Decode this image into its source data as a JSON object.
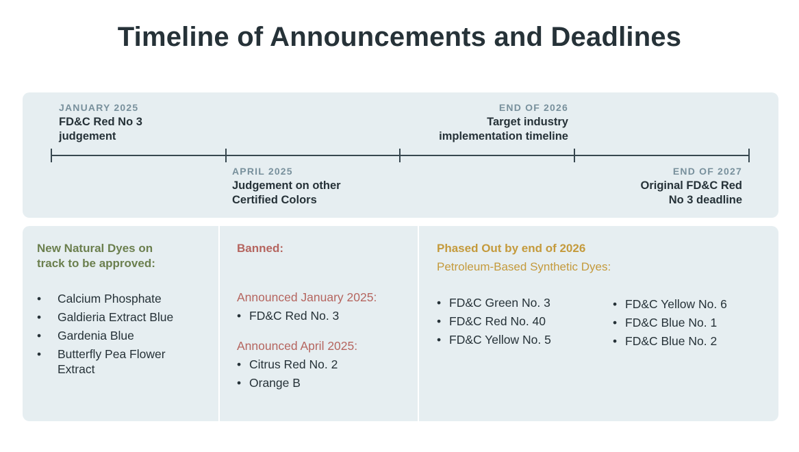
{
  "title": "Timeline of Announcements and Deadlines",
  "timeline": {
    "events": [
      {
        "date": "JANUARY 2025",
        "line1": "FD&C Red No 3",
        "line2": "judgement"
      },
      {
        "date": "APRIL 2025",
        "line1": "Judgement on other",
        "line2": "Certified Colors"
      },
      {
        "date": "END OF 2026",
        "line1": "Target industry",
        "line2": "implementation timeline"
      },
      {
        "date": "END OF 2027",
        "line1": "Original FD&C Red",
        "line2": "No 3 deadline"
      }
    ]
  },
  "natural": {
    "title_line1": "New Natural Dyes on",
    "title_line2": "track to be approved:",
    "items": [
      "Calcium Phosphate",
      "Galdieria Extract Blue",
      "Gardenia Blue",
      "Butterfly Pea Flower",
      "Extract"
    ]
  },
  "banned": {
    "title": "Banned:",
    "group1_label": "Announced January 2025:",
    "group1_items": [
      "FD&C Red No. 3"
    ],
    "group2_label": "Announced April 2025:",
    "group2_items": [
      "Citrus Red No. 2",
      "Orange B"
    ]
  },
  "phased": {
    "title": "Phased Out by end of 2026",
    "subtitle": "Petroleum-Based Synthetic Dyes:",
    "left_items": [
      "FD&C Green No. 3",
      "FD&C Red No. 40",
      "FD&C Yellow No. 5"
    ],
    "right_items": [
      "FD&C Yellow No. 6",
      "FD&C Blue No. 1",
      "FD&C Blue No. 2"
    ]
  },
  "colors": {
    "panel_bg": "#e6eef1",
    "heading": "#263238",
    "date_label": "#78909c",
    "green": "#6b7f4e",
    "red": "#b5655f",
    "gold": "#c49a3c"
  }
}
